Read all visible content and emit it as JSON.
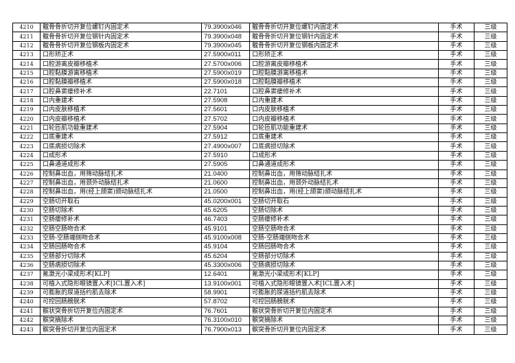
{
  "rows": [
    {
      "no": "4210",
      "name": "髋骨骨折切开复位螺钉内固定术",
      "code": "79.3900x046",
      "name2": "髋骨骨折切开复位螺钉内固定术",
      "type": "手术",
      "level": "三级"
    },
    {
      "no": "4211",
      "name": "髋骨骨折切开复位钢针内固定术",
      "code": "79.3900x048",
      "name2": "髋骨骨折切开复位钢针内固定术",
      "type": "手术",
      "level": "三级"
    },
    {
      "no": "4212",
      "name": "髋骨骨折切开复位钢板内固定术",
      "code": "79.3900x045",
      "name2": "髋骨骨折切开复位钢板内固定术",
      "type": "手术",
      "level": "三级"
    },
    {
      "no": "4213",
      "name": "口形矫正术",
      "code": "27.5900x011",
      "name2": "口形矫正术",
      "type": "手术",
      "level": "三级"
    },
    {
      "no": "4214",
      "name": "口腔游离皮瓣移植术",
      "code": "27.5700x006",
      "name2": "口腔游离皮瓣移植术",
      "type": "手术",
      "level": "三级"
    },
    {
      "no": "4215",
      "name": "口腔黏膜游离移植术",
      "code": "27.5900x019",
      "name2": "口腔黏膜游离移植术",
      "type": "手术",
      "level": "三级"
    },
    {
      "no": "4216",
      "name": "口腔黏膜瓣移植术",
      "code": "27.5900x018",
      "name2": "口腔黏膜瓣移植术",
      "type": "手术",
      "level": "三级"
    },
    {
      "no": "4217",
      "name": "口腔鼻窦瘘修补术",
      "code": "22.7101",
      "name2": "口腔鼻窦瘘修补术",
      "type": "手术",
      "level": "三级"
    },
    {
      "no": "4218",
      "name": "口内重建术",
      "code": "27.5908",
      "name2": "口内重建术",
      "type": "手术",
      "level": "三级"
    },
    {
      "no": "4219",
      "name": "口内皮肤移植术",
      "code": "27.5601",
      "name2": "口内皮肤移植术",
      "type": "手术",
      "level": "三级"
    },
    {
      "no": "4220",
      "name": "口内皮瓣移植术",
      "code": "27.5702",
      "name2": "口内皮瓣移植术",
      "type": "手术",
      "level": "三级"
    },
    {
      "no": "4221",
      "name": "口轮匝肌功能重建术",
      "code": "27.5904",
      "name2": "口轮匝肌功能重建术",
      "type": "手术",
      "level": "三级"
    },
    {
      "no": "4222",
      "name": "口底重建术",
      "code": "27.5912",
      "name2": "口底重建术",
      "type": "手术",
      "level": "三级"
    },
    {
      "no": "4223",
      "name": "口底病损切除术",
      "code": "27.4900x007",
      "name2": "口底病损切除术",
      "type": "手术",
      "level": "三级"
    },
    {
      "no": "4224",
      "name": "口成形术",
      "code": "27.5910",
      "name2": "口成形术",
      "type": "手术",
      "level": "三级"
    },
    {
      "no": "4225",
      "name": "口鼻通道成形术",
      "code": "27.5905",
      "name2": "口鼻通道成形术",
      "type": "手术",
      "level": "三级"
    },
    {
      "no": "4226",
      "name": "控制鼻出血，用筛动脉结扎术",
      "code": "21.0400",
      "name2": "控制鼻出血，用筛动脉结扎术",
      "type": "手术",
      "level": "三级"
    },
    {
      "no": "4227",
      "name": "控制鼻出血，用颈外动脉结扎术",
      "code": "21.0600",
      "name2": "控制鼻出血，用颈外动脉结扎术",
      "type": "手术",
      "level": "三级"
    },
    {
      "no": "4228",
      "name": "控制鼻出血，用(经上颌窦)颌动脉结扎术",
      "code": "21.0500",
      "name2": "控制鼻出血，用(经上颌窦)颌动脉结扎术",
      "type": "手术",
      "level": "三级"
    },
    {
      "no": "4229",
      "name": "空肠切开取石",
      "code": "45.0200x001",
      "name2": "空肠切开取石",
      "type": "手术",
      "level": "三级"
    },
    {
      "no": "4230",
      "name": "空肠切除术",
      "code": "45.6205",
      "name2": "空肠切除术",
      "type": "手术",
      "level": "三级"
    },
    {
      "no": "4231",
      "name": "空肠瘘修补术",
      "code": "46.7403",
      "name2": "空肠瘘修补术",
      "type": "手术",
      "level": "三级"
    },
    {
      "no": "4232",
      "name": "空肠空肠吻合术",
      "code": "45.9101",
      "name2": "空肠空肠吻合术",
      "type": "手术",
      "level": "三级"
    },
    {
      "no": "4233",
      "name": "空肠-空肠端侧吻合术",
      "code": "45.9100x008",
      "name2": "空肠-空肠端侧吻合术",
      "type": "手术",
      "level": "三级"
    },
    {
      "no": "4234",
      "name": "空肠回肠吻合术",
      "code": "45.9104",
      "name2": "空肠回肠吻合术",
      "type": "手术",
      "level": "三级"
    },
    {
      "no": "4235",
      "name": "空肠部分切除术",
      "code": "45.6204",
      "name2": "空肠部分切除术",
      "type": "手术",
      "level": "三级"
    },
    {
      "no": "4236",
      "name": "空肠病损切除术",
      "code": "45.3300x006",
      "name2": "空肠病损切除术",
      "type": "手术",
      "level": "三级"
    },
    {
      "no": "4237",
      "name": "氪激光小梁成形术[KLP]",
      "code": "12.6401",
      "name2": "氪激光小梁成形术[KLP]",
      "type": "手术",
      "level": "三级"
    },
    {
      "no": "4238",
      "name": "可植入式隐形眼镜置入术[ICL置入术]",
      "code": "13.9100x001",
      "name2": "可植入式隐形眼镜置入术[ICL置入术]",
      "type": "手术",
      "level": "三级"
    },
    {
      "no": "4239",
      "name": "可膨胀的尿道括约肌去除术",
      "code": "58.9901",
      "name2": "可膨胀的尿道括约肌去除术",
      "type": "手术",
      "level": "三级"
    },
    {
      "no": "4240",
      "name": "可控回肠膀胱术",
      "code": "57.8702",
      "name2": "可控回肠膀胱术",
      "type": "手术",
      "level": "三级"
    },
    {
      "no": "4241",
      "name": "髌状突骨折切开复位内固定术",
      "code": "76.7601",
      "name2": "髌状突骨折切开复位内固定术",
      "type": "手术",
      "level": "三级"
    },
    {
      "no": "4242",
      "name": "髌突摘除术",
      "code": "76.3100x010",
      "name2": "髌突摘除术",
      "type": "手术",
      "level": "三级"
    },
    {
      "no": "4243",
      "name": "髌突骨折切开复位内固定术",
      "code": "76.7900x013",
      "name2": "髌突骨折切开复位内固定术",
      "type": "手术",
      "level": "三级"
    }
  ]
}
